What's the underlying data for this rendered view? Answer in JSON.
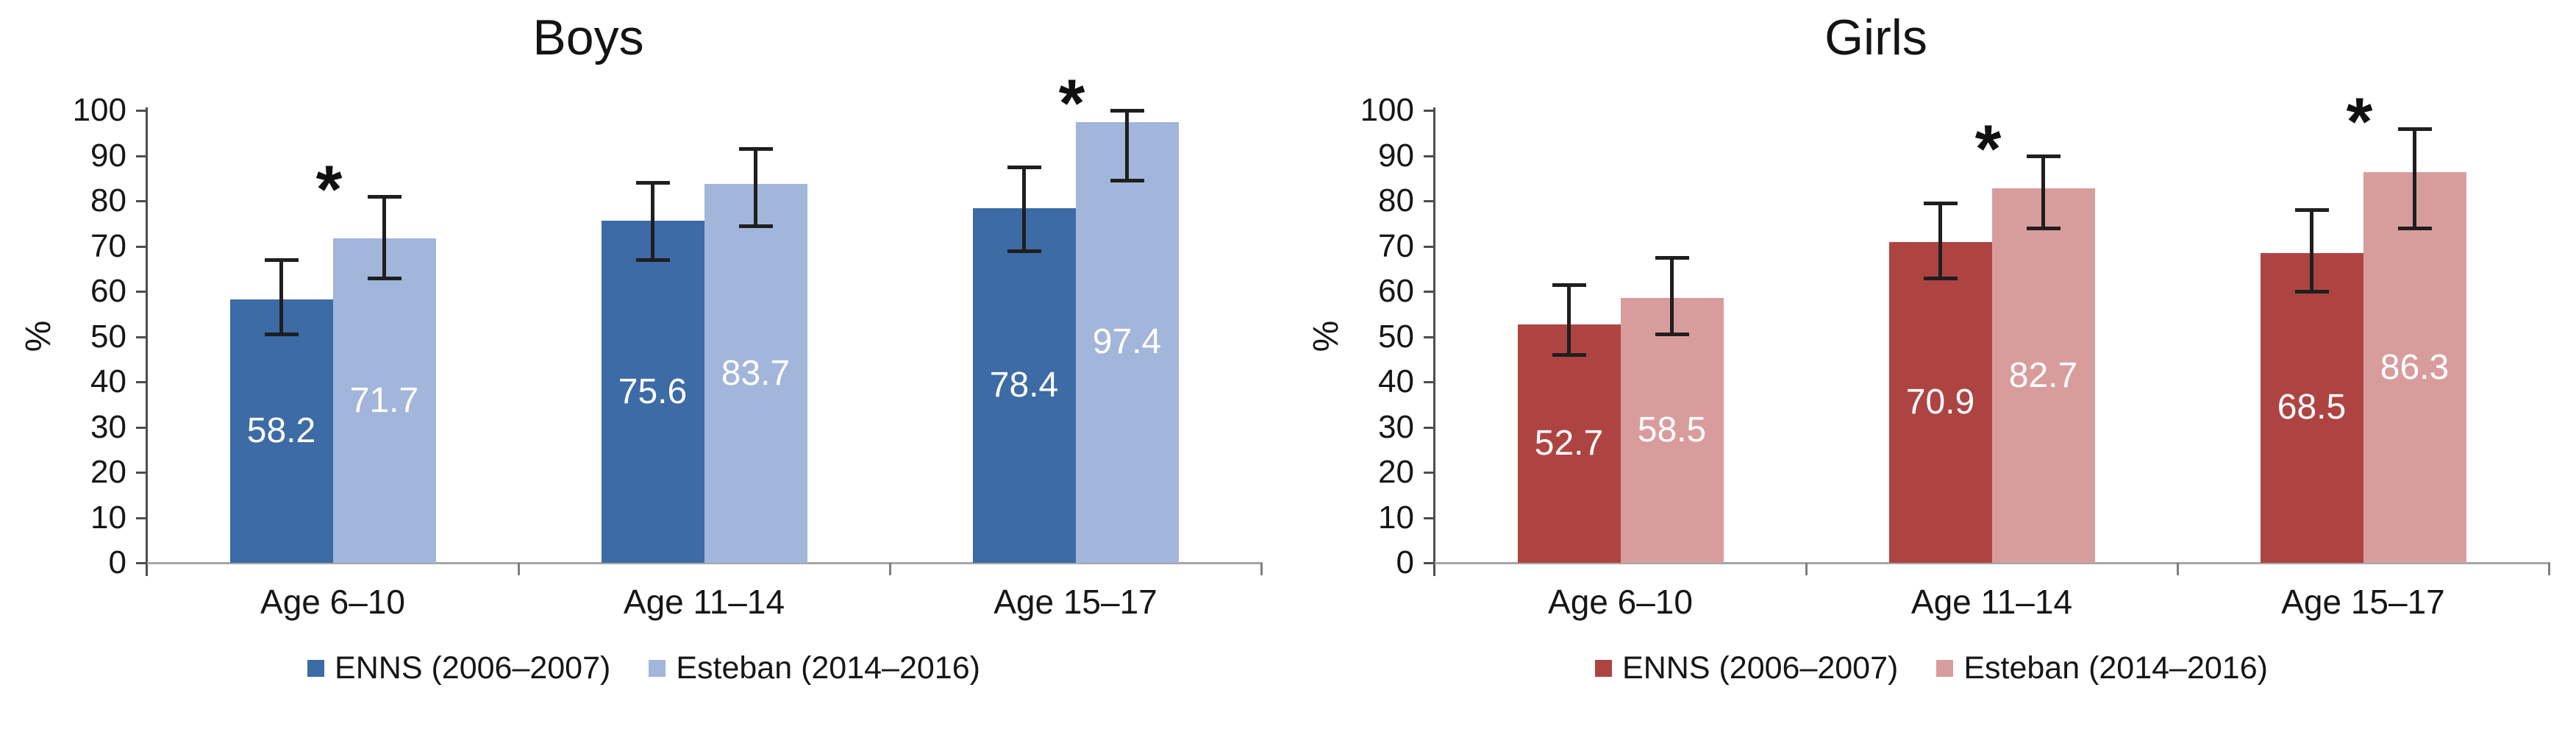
{
  "figure": {
    "background": "#ffffff"
  },
  "style": {
    "y_axis_color": "#4D4D4D",
    "x_axis_color": "#A6A6A6",
    "x_tick_color": "#7F7F7F",
    "error_bar_color": "#1F1F1F",
    "text_color": "#161616",
    "bar_label_color": "#FFFFFF"
  },
  "chart_data": [
    {
      "id": "boys",
      "type": "bar",
      "title": "Boys",
      "ylabel": "%",
      "ylim": [
        0,
        100
      ],
      "ytick_step": 10,
      "grid": false,
      "legend_position": "bottom",
      "significance_marker": "*",
      "categories": [
        "Age 6–10",
        "Age 11–14",
        "Age 15–17"
      ],
      "series": [
        {
          "name": "ENNS (2006–2007)",
          "color": "#3C6BA6",
          "values": [
            58.2,
            75.6,
            78.4
          ],
          "ci_low": [
            50.5,
            67.0,
            69.0
          ],
          "ci_high": [
            67.0,
            84.0,
            87.5
          ]
        },
        {
          "name": "Esteban (2014–2016)",
          "color": "#A2B5DA",
          "values": [
            71.7,
            83.7,
            97.4
          ],
          "ci_low": [
            63.0,
            74.5,
            84.5
          ],
          "ci_high": [
            81.0,
            91.5,
            100.0
          ]
        }
      ],
      "significant_categories": [
        true,
        false,
        true
      ]
    },
    {
      "id": "girls",
      "type": "bar",
      "title": "Girls",
      "ylabel": "%",
      "ylim": [
        0,
        100
      ],
      "ytick_step": 10,
      "grid": false,
      "legend_position": "bottom",
      "significance_marker": "*",
      "categories": [
        "Age 6–10",
        "Age 11–14",
        "Age 15–17"
      ],
      "series": [
        {
          "name": "ENNS (2006–2007)",
          "color": "#AE4442",
          "values": [
            52.7,
            70.9,
            68.5
          ],
          "ci_low": [
            46.0,
            63.0,
            60.0
          ],
          "ci_high": [
            61.5,
            79.5,
            78.0
          ]
        },
        {
          "name": "Esteban (2014–2016)",
          "color": "#D99C9D",
          "values": [
            58.5,
            82.7,
            86.3
          ],
          "ci_low": [
            50.5,
            74.0,
            74.0
          ],
          "ci_high": [
            67.5,
            90.0,
            96.0
          ]
        }
      ],
      "significant_categories": [
        false,
        true,
        true
      ]
    }
  ]
}
